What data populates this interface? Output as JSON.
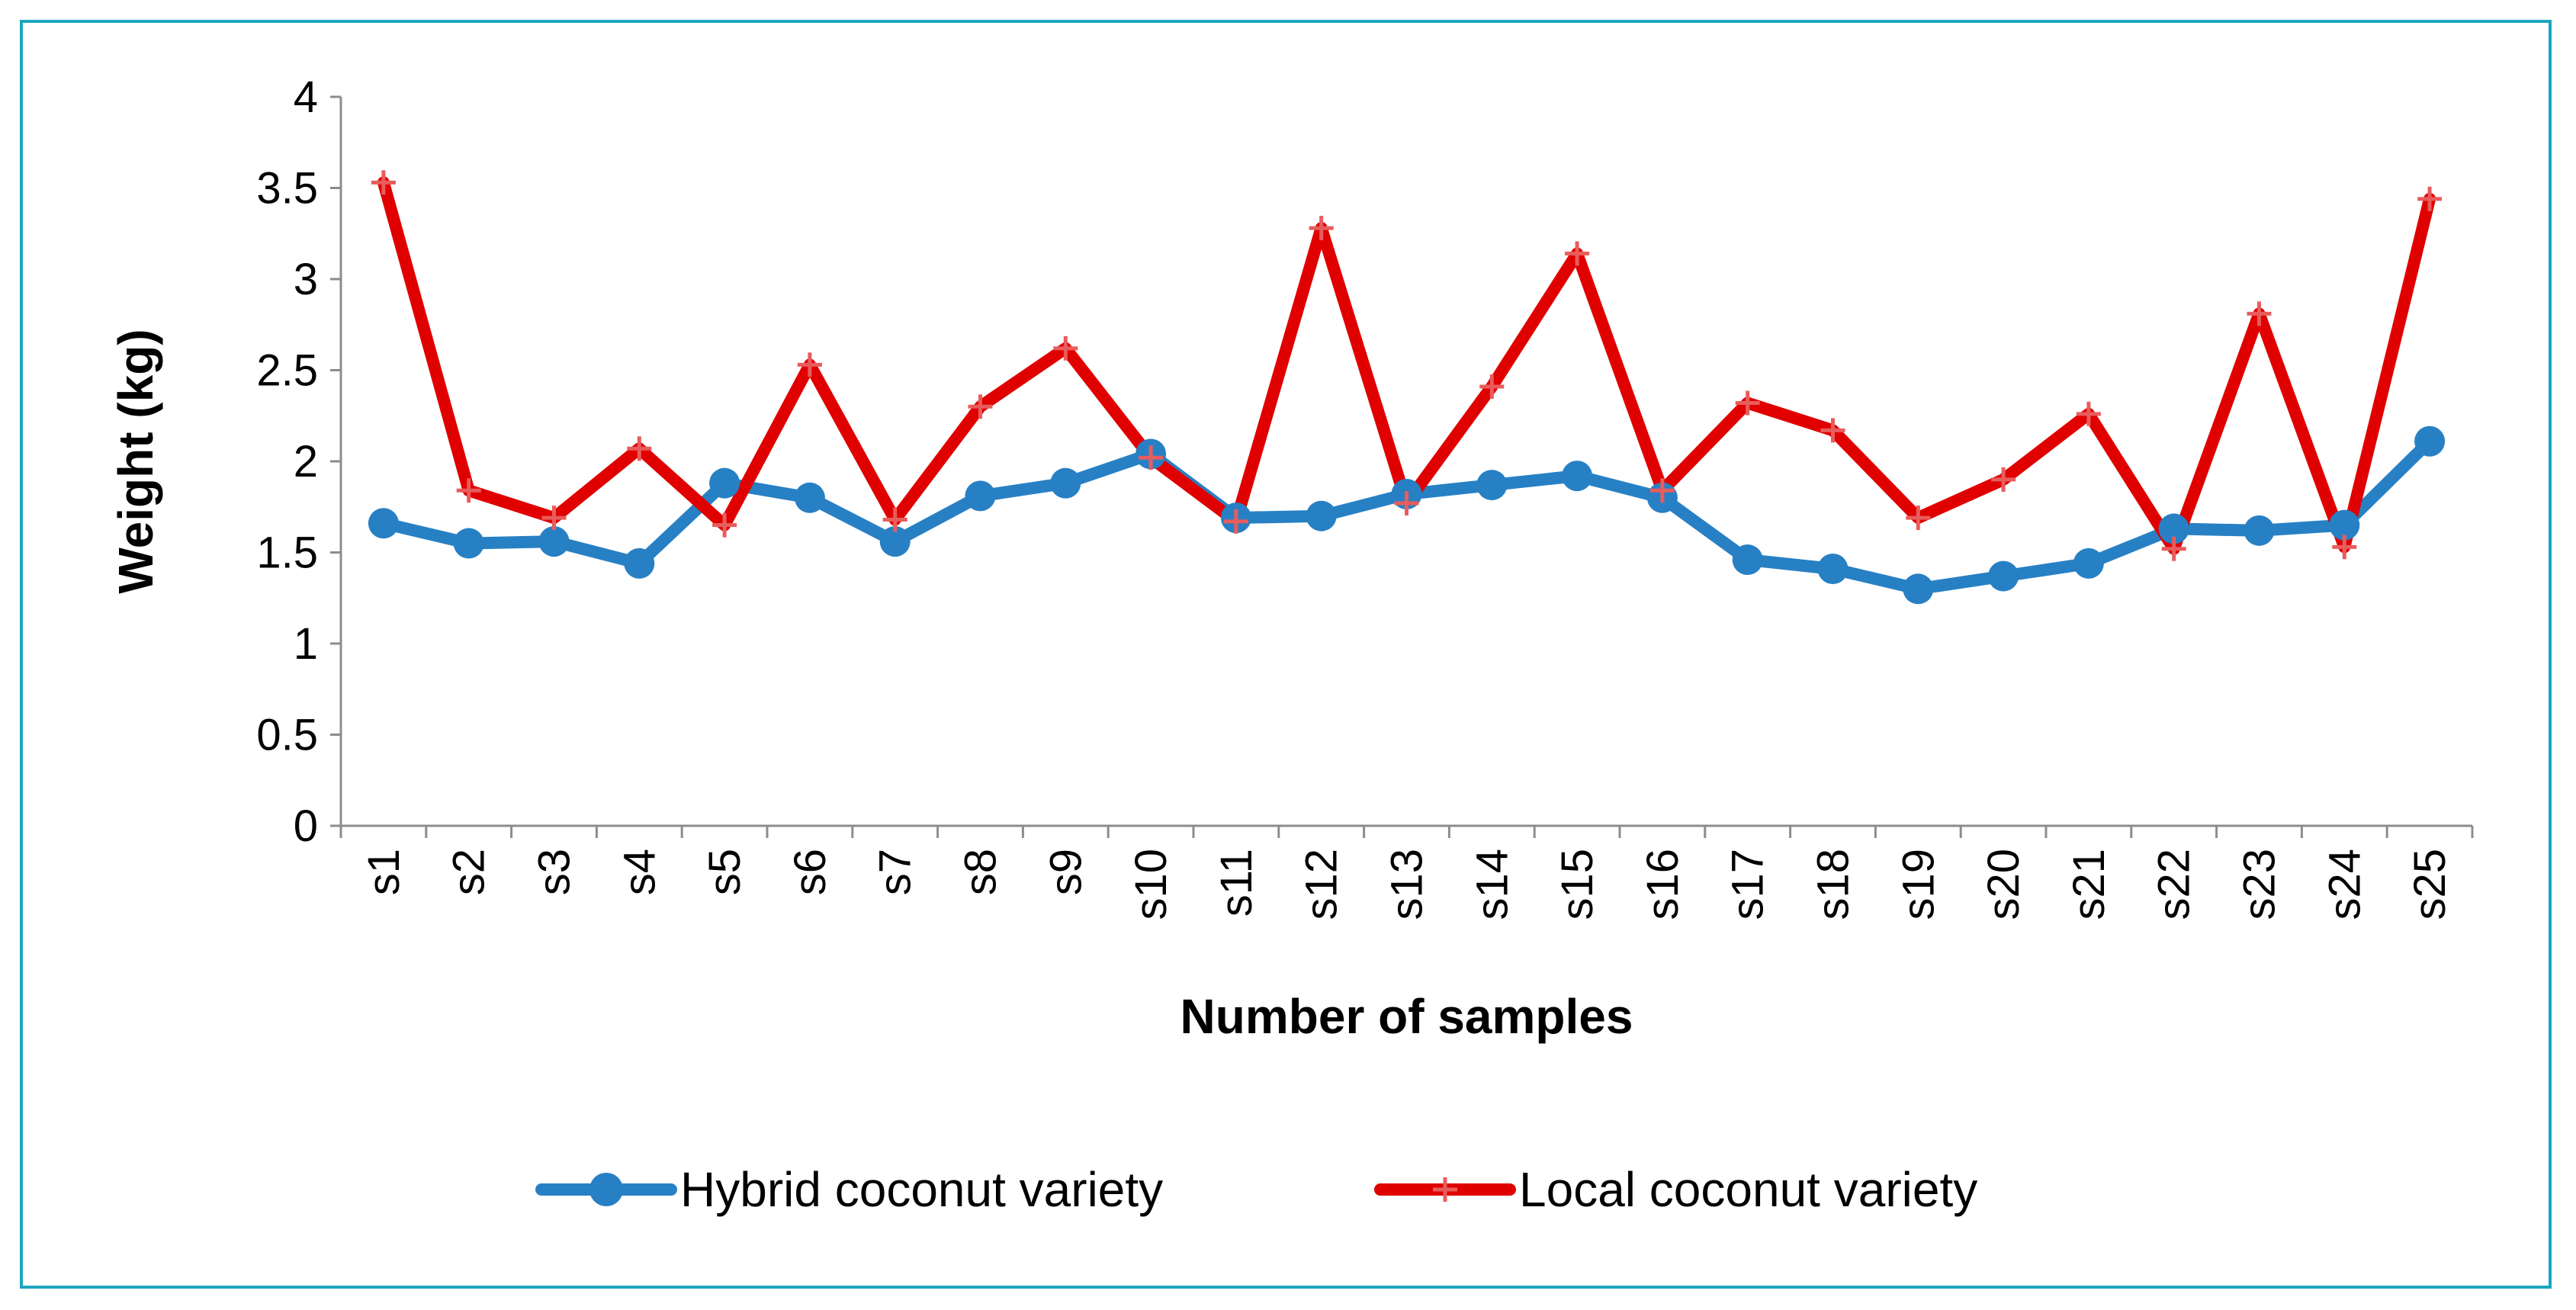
{
  "chart_data": {
    "type": "line",
    "title": "",
    "xlabel": "Number of samples",
    "ylabel": "Weight (kg)",
    "ylim": [
      0,
      4
    ],
    "yticks": [
      "0",
      "0.5",
      "1",
      "1.5",
      "2",
      "2.5",
      "3",
      "3.5",
      "4"
    ],
    "categories": [
      "s1",
      "s2",
      "s3",
      "s4",
      "s5",
      "s6",
      "s7",
      "s8",
      "s9",
      "s10",
      "s11",
      "s12",
      "s13",
      "s14",
      "s15",
      "s16",
      "s17",
      "s18",
      "s19",
      "s20",
      "s21",
      "s22",
      "s23",
      "s24",
      "s25"
    ],
    "grid": false,
    "legend_position": "bottom",
    "series": [
      {
        "name": "Hybrid coconut variety",
        "color": "#2880c4",
        "marker": "circle",
        "values": [
          1.66,
          1.55,
          1.56,
          1.44,
          1.88,
          1.8,
          1.56,
          1.81,
          1.88,
          2.04,
          1.69,
          1.7,
          1.82,
          1.87,
          1.92,
          1.8,
          1.46,
          1.41,
          1.3,
          1.37,
          1.44,
          1.63,
          1.62,
          1.65,
          2.11
        ]
      },
      {
        "name": "Local coconut variety",
        "color": "#e00000",
        "marker": "plus",
        "values": [
          3.53,
          1.84,
          1.69,
          2.07,
          1.65,
          2.53,
          1.68,
          2.3,
          2.62,
          2.02,
          1.67,
          3.28,
          1.77,
          2.41,
          3.14,
          1.84,
          2.32,
          2.17,
          1.69,
          1.9,
          2.26,
          1.52,
          2.81,
          1.53,
          3.44
        ]
      }
    ]
  }
}
